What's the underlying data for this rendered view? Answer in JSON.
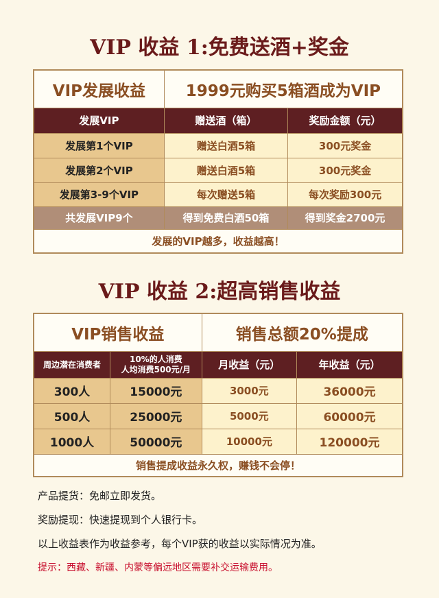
{
  "section1": {
    "title": "VIP 收益 1:免费送酒+奖金",
    "label": "VIP发展收益",
    "headline": "1999元购买5箱酒成为VIP",
    "headers": [
      "发展VIP",
      "赠送酒（箱）",
      "奖励金额（元）"
    ],
    "rows": [
      [
        "发展第1个VIP",
        "赠送白酒5箱",
        "300元奖金"
      ],
      [
        "发展第2个VIP",
        "赠送白酒5箱",
        "300元奖金"
      ],
      [
        "发展第3-9个VIP",
        "每次赠送5箱",
        "每次奖励300元"
      ]
    ],
    "total": [
      "共发展VIP9个",
      "得到免费白酒50箱",
      "得到奖金2700元"
    ],
    "footer": "发展的VIP越多，收益越高！"
  },
  "section2": {
    "title": "VIP 收益 2:超高销售收益",
    "label": "VIP销售收益",
    "headline": "销售总额20%提成",
    "headers": [
      "周边潜在消费者",
      "10%的人消费",
      "人均消费500元/月",
      "月收益（元）",
      "年收益（元）"
    ],
    "rows": [
      [
        "300人",
        "15000元",
        "3000元",
        "36000元"
      ],
      [
        "500人",
        "25000元",
        "5000元",
        "60000元"
      ],
      [
        "1000人",
        "50000元",
        "10000元",
        "120000元"
      ]
    ],
    "footer": "销售提成收益永久权，赚钱不会停！"
  },
  "notes": [
    "产品提货：免邮立即发货。",
    "奖励提现：快速提现到个人银行卡。",
    "以上收益表作为收益参考，每个VIP获的收益以实际情况为准。"
  ],
  "warning": "提示：西藏、新疆、内蒙等偏远地区需要补交运输费用。",
  "colors": {
    "maroon": "#5e1f22",
    "tan": "#e8c78e",
    "cream": "#fdf2cc",
    "total": "#b08e78",
    "warning": "#c8102e"
  }
}
